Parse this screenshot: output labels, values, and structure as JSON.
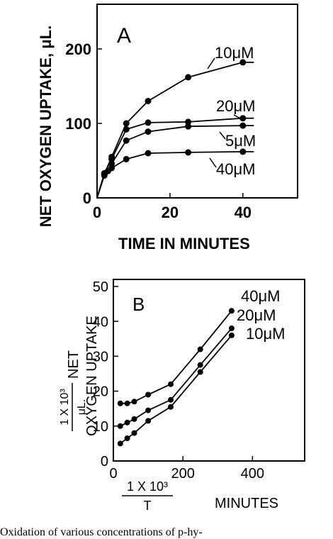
{
  "chart_data": [
    {
      "type": "line",
      "panel_label": "A",
      "xlabel": "TIME IN MINUTES",
      "ylabel": "NET OXYGEN UPTAKE, μL.",
      "xlim": [
        0,
        55
      ],
      "ylim": [
        0,
        260
      ],
      "xticks": [
        0,
        20,
        40
      ],
      "yticks": [
        0,
        100,
        200
      ],
      "series": [
        {
          "name": "10μM",
          "x": [
            2,
            4,
            8,
            14,
            25,
            40
          ],
          "y": [
            32,
            55,
            100,
            130,
            162,
            182
          ]
        },
        {
          "name": "20μM",
          "x": [
            2,
            4,
            8,
            14,
            25,
            40
          ],
          "y": [
            33,
            52,
            92,
            101,
            102,
            107
          ]
        },
        {
          "name": "5μM",
          "x": [
            2,
            4,
            8,
            14,
            25,
            40
          ],
          "y": [
            30,
            46,
            77,
            89,
            96,
            97
          ]
        },
        {
          "name": "40μM",
          "x": [
            2,
            3,
            4,
            8,
            14,
            25,
            40
          ],
          "y": [
            32,
            36,
            40,
            52,
            60,
            61,
            62
          ]
        }
      ]
    },
    {
      "type": "line",
      "panel_label": "B",
      "xlabel_fraction_num": "1 X 10³",
      "xlabel_fraction_den": "T",
      "xlabel_unit": "MINUTES",
      "ylabel_fraction_num": "1 X 10³",
      "ylabel_fraction_den": "μL.",
      "ylabel_rest": "NET",
      "ylabel_line2": "OXYGEN UPTAKE",
      "xlim": [
        0,
        550
      ],
      "ylim": [
        0,
        52
      ],
      "xticks": [
        0,
        200,
        400
      ],
      "yticks": [
        0,
        10,
        20,
        30,
        40,
        50
      ],
      "series": [
        {
          "name": "40μM",
          "x": [
            20,
            40,
            60,
            100,
            165,
            250,
            340
          ],
          "y": [
            16.5,
            16.5,
            17,
            19,
            22,
            32,
            43
          ]
        },
        {
          "name": "20μM",
          "x": [
            20,
            40,
            60,
            100,
            165,
            250,
            340
          ],
          "y": [
            10,
            11,
            12,
            14.5,
            17.5,
            27.5,
            38
          ]
        },
        {
          "name": "10μM",
          "x": [
            20,
            40,
            60,
            100,
            165,
            250,
            340
          ],
          "y": [
            5,
            6.5,
            8,
            11.5,
            15.5,
            25.5,
            36
          ]
        }
      ]
    }
  ],
  "caption": "Oxidation of various concentrations of p-hy-"
}
